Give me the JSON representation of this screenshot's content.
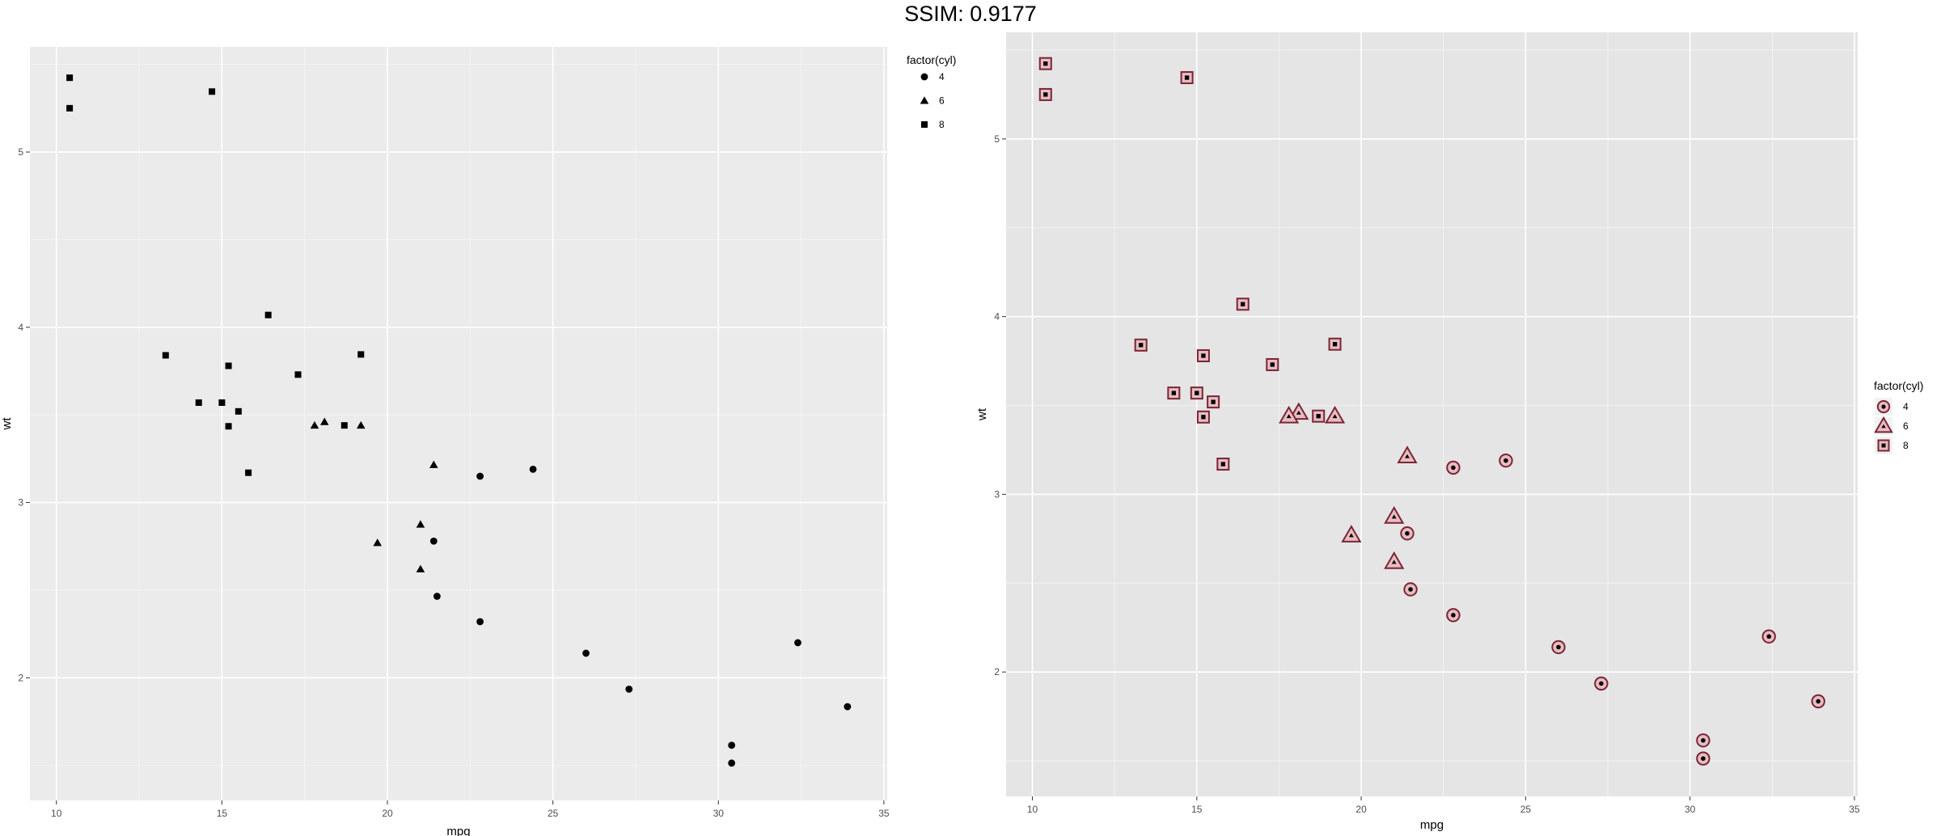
{
  "header": {
    "title": "SSIM: 0.9177"
  },
  "chart_data": [
    {
      "type": "scatter",
      "title": "",
      "xlabel": "mpg",
      "ylabel": "wt",
      "xlim": [
        9.2,
        35.1
      ],
      "ylim": [
        1.3,
        5.6
      ],
      "xticks": [
        10,
        15,
        20,
        25,
        30,
        35
      ],
      "yticks": [
        2,
        3,
        4,
        5
      ],
      "grid": true,
      "legend": {
        "title": "factor(cyl)",
        "placement": "top-right",
        "entries": [
          "4",
          "6",
          "8"
        ]
      },
      "style": {
        "panel_bg": "#ebebeb",
        "point_fill": "#000000",
        "point_outline": "none"
      },
      "series": [
        {
          "name": "4",
          "shape": "circle",
          "x": [
            22.8,
            24.4,
            22.8,
            32.4,
            30.4,
            33.9,
            21.5,
            27.3,
            26.0,
            30.4,
            21.4
          ],
          "y": [
            2.32,
            3.19,
            3.15,
            2.2,
            1.615,
            1.835,
            2.465,
            1.935,
            2.14,
            1.513,
            2.78
          ]
        },
        {
          "name": "6",
          "shape": "triangle",
          "x": [
            21.0,
            21.0,
            21.4,
            18.1,
            19.2,
            17.8,
            19.7
          ],
          "y": [
            2.62,
            2.875,
            3.215,
            3.46,
            3.44,
            3.44,
            2.77
          ]
        },
        {
          "name": "8",
          "shape": "square",
          "x": [
            18.7,
            14.3,
            16.4,
            17.3,
            15.2,
            10.4,
            10.4,
            14.7,
            15.5,
            15.2,
            13.3,
            19.2,
            15.8,
            15.0
          ],
          "y": [
            3.44,
            3.57,
            4.07,
            3.73,
            3.78,
            5.25,
            5.424,
            5.345,
            3.52,
            3.435,
            3.84,
            3.845,
            3.17,
            3.57
          ]
        }
      ]
    },
    {
      "type": "scatter",
      "title": "",
      "xlabel": "mpg",
      "ylabel": "wt",
      "xlim": [
        9.2,
        35.1
      ],
      "ylim": [
        1.3,
        5.6
      ],
      "xticks": [
        10,
        15,
        20,
        25,
        30,
        35
      ],
      "yticks": [
        2,
        3,
        4,
        5
      ],
      "grid": true,
      "legend": {
        "title": "factor(cyl)",
        "placement": "right",
        "entries": [
          "4",
          "6",
          "8"
        ]
      },
      "style": {
        "panel_bg": "#e5e5e5",
        "point_fill": "#e8bcc0",
        "point_outline": "#7a2436"
      },
      "series": [
        {
          "name": "4",
          "shape": "circle",
          "x": [
            22.8,
            24.4,
            22.8,
            32.4,
            30.4,
            33.9,
            21.5,
            27.3,
            26.0,
            30.4,
            21.4
          ],
          "y": [
            2.32,
            3.19,
            3.15,
            2.2,
            1.615,
            1.835,
            2.465,
            1.935,
            2.14,
            1.513,
            2.78
          ]
        },
        {
          "name": "6",
          "shape": "triangle",
          "x": [
            21.0,
            21.0,
            21.4,
            18.1,
            19.2,
            17.8,
            19.7
          ],
          "y": [
            2.62,
            2.875,
            3.215,
            3.46,
            3.44,
            3.44,
            2.77
          ]
        },
        {
          "name": "8",
          "shape": "square",
          "x": [
            18.7,
            14.3,
            16.4,
            17.3,
            15.2,
            10.4,
            10.4,
            14.7,
            15.5,
            15.2,
            13.3,
            19.2,
            15.8,
            15.0
          ],
          "y": [
            3.44,
            3.57,
            4.07,
            3.73,
            3.78,
            5.25,
            5.424,
            5.345,
            3.52,
            3.435,
            3.84,
            3.845,
            3.17,
            3.57
          ]
        }
      ]
    }
  ]
}
